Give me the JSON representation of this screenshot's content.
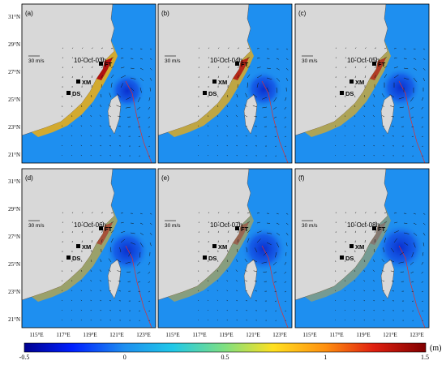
{
  "figure": {
    "panels": [
      {
        "label": "(a)",
        "time": "10-Oct-03h",
        "scale": "30 m/s"
      },
      {
        "label": "(b)",
        "time": "10-Oct-04h",
        "scale": "30 m/s"
      },
      {
        "label": "(c)",
        "time": "10-Oct-05h",
        "scale": "30 m/s"
      },
      {
        "label": "(d)",
        "time": "10-Oct-06h",
        "scale": "30 m/s"
      },
      {
        "label": "(e)",
        "time": "10-Oct-07h",
        "scale": "30 m/s"
      },
      {
        "label": "(f)",
        "time": "10-Oct-08h",
        "scale": "30 m/s"
      }
    ],
    "sites": {
      "ft": "FT",
      "xm": "XM",
      "ds": "DS"
    },
    "lat_ticks": [
      "31°N",
      "29°N",
      "27°N",
      "25°N",
      "23°N",
      "21°N"
    ],
    "lon_ticks": [
      "115°E",
      "117°E",
      "119°E",
      "121°E",
      "123°E"
    ],
    "colorbar": {
      "ticks": [
        "-0.5",
        "0",
        "0.5",
        "1",
        "1.5"
      ],
      "unit": "(m)",
      "min": -0.5,
      "max": 1.5
    },
    "colors": {
      "land": "#d8d8d8",
      "sea": "#1e8ff0",
      "deep_low": "#0a2fd0",
      "surge_high": "#b01010",
      "track": "#e03030"
    }
  }
}
